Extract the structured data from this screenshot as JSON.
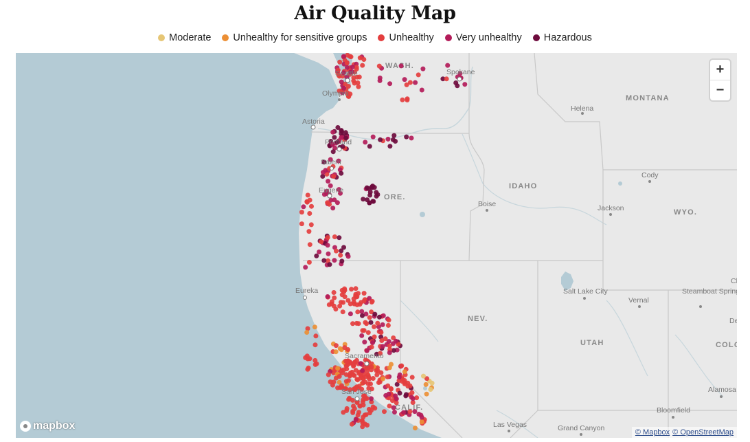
{
  "title": "Air Quality Map",
  "legend": [
    {
      "label": "Moderate",
      "color": "#e6c675"
    },
    {
      "label": "Unhealthy for sensitive groups",
      "color": "#ec8f35"
    },
    {
      "label": "Unhealthy",
      "color": "#e43e3e"
    },
    {
      "label": "Very unhealthy",
      "color": "#b31b59"
    },
    {
      "label": "Hazardous",
      "color": "#6e0b3d"
    }
  ],
  "map": {
    "zoom_in": "+",
    "zoom_out": "−",
    "logo": "mapbox",
    "attribution": [
      "© Mapbox",
      "© OpenStreetMap"
    ],
    "states": [
      "WASH.",
      "MONTANA",
      "IDAHO",
      "ORE.",
      "WYO.",
      "NEV.",
      "UTAH",
      "CALIF.",
      "COLO"
    ],
    "cities": [
      "Seattle",
      "Olympia",
      "Spokane",
      "Helena",
      "Astoria",
      "Portland",
      "Salem",
      "Eugene",
      "Cody",
      "Boise",
      "Jackson",
      "Eureka",
      "Salt Lake City",
      "Vernal",
      "Steamboat Springs",
      "Sacramento",
      "San Jose",
      "Alamosa",
      "Bloomfield",
      "Las Vegas",
      "Grand Canyon",
      "Ch",
      "De"
    ]
  }
}
